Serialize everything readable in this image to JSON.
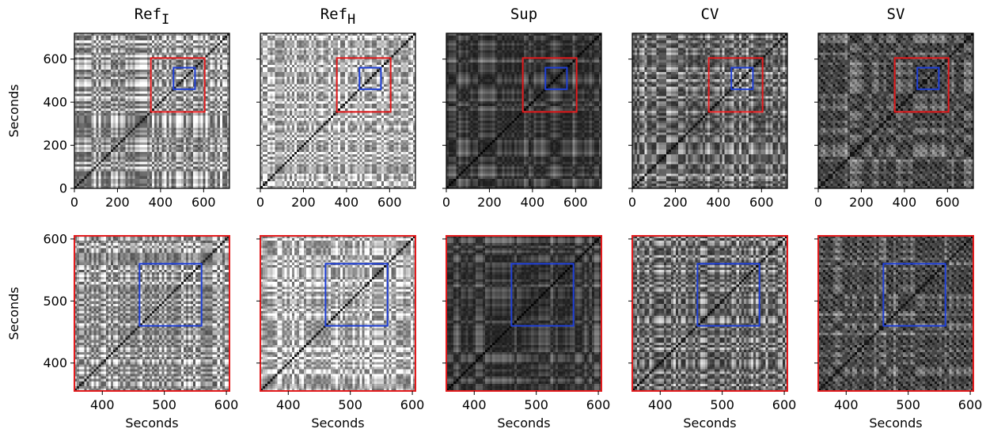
{
  "chart_data": {
    "type": "heatmap",
    "description_grid": "2x5 grid of self-similarity matrices",
    "panels": [
      {
        "label": "Ref",
        "subscript": "I"
      },
      {
        "label": "Ref",
        "subscript": "H"
      },
      {
        "label": "Sup",
        "subscript": ""
      },
      {
        "label": "CV",
        "subscript": ""
      },
      {
        "label": "SV",
        "subscript": ""
      }
    ],
    "rows": [
      {
        "xlim": [
          0,
          720
        ],
        "ylim": [
          0,
          720
        ],
        "xticks": [
          0,
          200,
          400,
          600
        ],
        "yticks": [
          0,
          200,
          400,
          600
        ],
        "ylabel": "Seconds",
        "xlabel": "",
        "frame_color": "#000000",
        "boxes": [
          {
            "range": [
              355,
              605
            ],
            "color": "#e31a1c"
          },
          {
            "range": [
              460,
              560
            ],
            "color": "#1f3fd6"
          }
        ]
      },
      {
        "xlim": [
          355,
          605
        ],
        "ylim": [
          355,
          605
        ],
        "xticks": [
          400,
          500,
          600
        ],
        "yticks": [
          400,
          500,
          600
        ],
        "ylabel": "Seconds",
        "xlabel": "Seconds",
        "frame_color": "#e31a1c",
        "boxes": [
          {
            "range": [
              460,
              560
            ],
            "color": "#1f3fd6"
          }
        ]
      }
    ],
    "grid": false,
    "colormap": "gray"
  }
}
